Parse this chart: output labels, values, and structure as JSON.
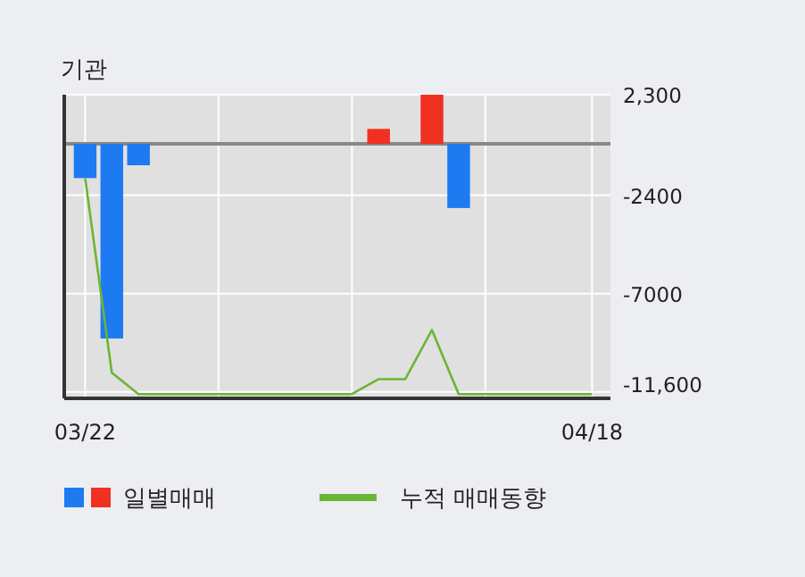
{
  "chart_data": {
    "type": "bar",
    "title": "기관",
    "categories": [
      "03/22",
      null,
      null,
      null,
      null,
      null,
      null,
      null,
      null,
      null,
      null,
      null,
      null,
      null,
      null,
      null,
      null,
      null,
      null,
      "04/18"
    ],
    "series": [
      {
        "name": "일별매매",
        "colors": [
          "#1e7af0",
          "#1e7af0",
          "#1e7af0",
          null,
          null,
          null,
          null,
          null,
          null,
          null,
          null,
          "#f03020",
          null,
          "#f03020",
          "#1e7af0",
          null,
          null,
          null,
          null,
          null
        ],
        "values": [
          -1600,
          -9100,
          -1000,
          0,
          0,
          0,
          0,
          0,
          0,
          0,
          0,
          700,
          0,
          2300,
          -3000,
          0,
          0,
          0,
          0,
          0
        ]
      },
      {
        "name": "누적 매매동향",
        "type": "line",
        "color": "#6ab534",
        "values": [
          -1600,
          -10700,
          -11700,
          -11700,
          -11700,
          -11700,
          -11700,
          -11700,
          -11700,
          -11700,
          -11700,
          -11000,
          -11000,
          -8700,
          -11700,
          -11700,
          -11700,
          -11700,
          -11700,
          -11700
        ]
      }
    ],
    "ylim": [
      -11900,
      2300
    ],
    "yticks": [
      {
        "value": 2300,
        "label": "2,300"
      },
      {
        "value": -2400,
        "label": "-2400"
      },
      {
        "value": -7000,
        "label": "-7000"
      },
      {
        "value": -11600,
        "label": "-11,600"
      }
    ],
    "ref_lines": [
      {
        "axis": "y",
        "value": 0,
        "color": "#888888"
      }
    ],
    "grid": true,
    "legend": "bottom"
  }
}
